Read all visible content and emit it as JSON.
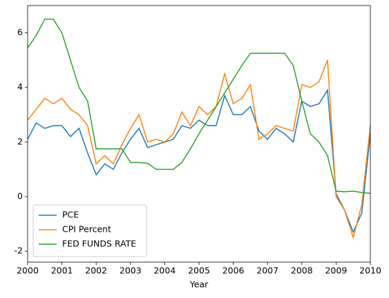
{
  "chart_data": {
    "type": "line",
    "x_label": "Year",
    "x": [
      2000,
      2000.25,
      2000.5,
      2000.75,
      2001,
      2001.25,
      2001.5,
      2001.75,
      2002,
      2002.25,
      2002.5,
      2002.75,
      2003,
      2003.25,
      2003.5,
      2003.75,
      2004,
      2004.25,
      2004.5,
      2004.75,
      2005,
      2005.25,
      2005.5,
      2005.75,
      2006,
      2006.25,
      2006.5,
      2006.75,
      2007,
      2007.25,
      2007.5,
      2007.75,
      2008,
      2008.25,
      2008.5,
      2008.75,
      2009,
      2009.25,
      2009.5,
      2009.75,
      2010
    ],
    "series": [
      {
        "name": "PCE",
        "color": "#1f77b4",
        "values": [
          2.1,
          2.7,
          2.5,
          2.6,
          2.6,
          2.2,
          2.5,
          1.6,
          0.8,
          1.2,
          1.0,
          1.6,
          2.1,
          2.5,
          1.8,
          1.9,
          2.0,
          2.1,
          2.6,
          2.5,
          2.8,
          2.6,
          2.6,
          3.7,
          3.0,
          3.0,
          3.3,
          2.4,
          2.1,
          2.5,
          2.3,
          2.0,
          3.5,
          3.3,
          3.4,
          3.9,
          0.1,
          -0.5,
          -1.3,
          -0.6,
          2.3
        ]
      },
      {
        "name": "CPI Percent",
        "color": "#ff7f0e",
        "values": [
          2.8,
          3.2,
          3.6,
          3.4,
          3.6,
          3.2,
          3.0,
          2.6,
          1.2,
          1.5,
          1.2,
          1.9,
          2.5,
          3.0,
          2.0,
          2.1,
          2.0,
          2.3,
          3.1,
          2.6,
          3.3,
          3.0,
          3.3,
          4.5,
          3.4,
          3.6,
          4.1,
          2.1,
          2.3,
          2.6,
          2.5,
          2.4,
          4.1,
          4.0,
          4.2,
          5.0,
          0.0,
          -0.5,
          -1.5,
          -0.3,
          2.6
        ]
      },
      {
        "name": "FED FUNDS RATE",
        "color": "#2ca02c",
        "values": [
          5.45,
          5.9,
          6.5,
          6.5,
          6.0,
          5.0,
          4.0,
          3.5,
          1.75,
          1.75,
          1.75,
          1.75,
          1.25,
          1.25,
          1.22,
          1.0,
          1.0,
          1.0,
          1.25,
          1.75,
          2.3,
          2.8,
          3.3,
          3.8,
          4.3,
          4.8,
          5.25,
          5.25,
          5.25,
          5.25,
          5.25,
          4.8,
          3.5,
          2.3,
          2.0,
          1.5,
          0.2,
          0.18,
          0.2,
          0.15,
          0.12
        ]
      }
    ],
    "xlim": [
      2000,
      2010
    ],
    "xticks": [
      2000,
      2001,
      2002,
      2003,
      2004,
      2005,
      2006,
      2007,
      2008,
      2009,
      2010
    ],
    "ylim": [
      -2.4,
      7.0
    ],
    "yticks": [
      -2,
      0,
      2,
      4,
      6
    ],
    "legend": "lower left",
    "grid": false
  }
}
